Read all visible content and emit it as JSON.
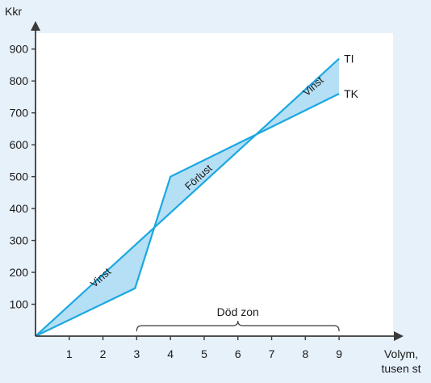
{
  "chart_data": {
    "type": "line",
    "ylabel": "Kkr",
    "xlabel_line1": "Volym,",
    "xlabel_line2": "tusen st",
    "xlim": [
      0,
      10.6
    ],
    "ylim": [
      0,
      950
    ],
    "x_ticks": [
      1,
      2,
      3,
      4,
      5,
      6,
      7,
      8,
      9
    ],
    "y_ticks": [
      100,
      200,
      300,
      400,
      500,
      600,
      700,
      800,
      900
    ],
    "series": [
      {
        "name": "TI",
        "x": [
          0,
          9
        ],
        "y": [
          0,
          870
        ]
      },
      {
        "name": "TK",
        "x": [
          0,
          2.95,
          4,
          9
        ],
        "y": [
          0,
          150,
          500,
          760
        ]
      }
    ],
    "regions": [
      {
        "label": "Vinst",
        "x": 2.0,
        "y": 175
      },
      {
        "label": "Förlust",
        "x": 4.9,
        "y": 490
      },
      {
        "label": "Vinst",
        "x": 8.3,
        "y": 775
      }
    ],
    "zone": {
      "label": "Död zon",
      "x_start": 3,
      "x_end": 9
    },
    "colors": {
      "line": "#1ba8e0",
      "fill": "#b5dff5",
      "plot_bg": "#ffffff",
      "page_bg": "#e7f1fa",
      "axis": "#3a3a3a"
    }
  }
}
